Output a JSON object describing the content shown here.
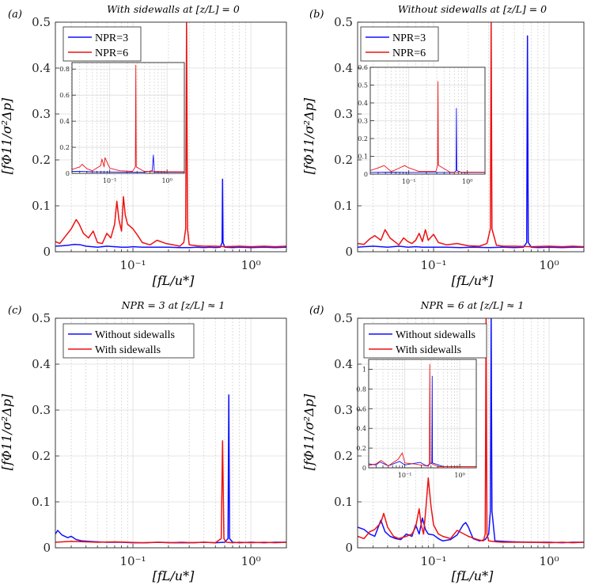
{
  "figure": {
    "background": "#ffffff",
    "colors": {
      "blue": "#1010ff",
      "red": "#ee1111"
    }
  },
  "chart_data": [
    {
      "type": "line",
      "panel_label": "(a)",
      "title": "With sidewalls at [z/L] = 0",
      "xlabel": "[fL/u*]",
      "ylabel": "[fΦ11/σ²Δp]",
      "xscale": "log",
      "xlim": [
        0.022,
        2.0
      ],
      "ylim": [
        0,
        0.5
      ],
      "yticks": [
        "0",
        "0.1",
        "0.2",
        "0.3",
        "0.4",
        "0.5"
      ],
      "xticks": [
        {
          "value": 0.1,
          "label": "10⁻¹"
        },
        {
          "value": 1,
          "label": "10⁰"
        }
      ],
      "legend": {
        "position": "top-left",
        "entries": [
          "NPR=3",
          "NPR=6"
        ]
      },
      "series": [
        {
          "name": "NPR=3",
          "color": "#1010ff",
          "x": [
            0.022,
            0.025,
            0.028,
            0.032,
            0.036,
            0.04,
            0.045,
            0.05,
            0.06,
            0.07,
            0.08,
            0.09,
            0.1,
            0.12,
            0.15,
            0.2,
            0.25,
            0.3,
            0.35,
            0.4,
            0.45,
            0.5,
            0.55,
            0.57,
            0.575,
            0.58,
            0.6,
            0.7,
            0.8,
            1.0,
            1.3,
            1.6,
            2.0
          ],
          "y": [
            0.012,
            0.013,
            0.014,
            0.016,
            0.015,
            0.012,
            0.011,
            0.01,
            0.012,
            0.011,
            0.01,
            0.01,
            0.011,
            0.01,
            0.01,
            0.01,
            0.009,
            0.009,
            0.01,
            0.009,
            0.01,
            0.009,
            0.01,
            0.02,
            0.158,
            0.02,
            0.01,
            0.009,
            0.01,
            0.009,
            0.01,
            0.009,
            0.01
          ]
        },
        {
          "name": "NPR=6",
          "color": "#ee1111",
          "x": [
            0.022,
            0.024,
            0.027,
            0.03,
            0.033,
            0.035,
            0.038,
            0.042,
            0.046,
            0.05,
            0.055,
            0.06,
            0.065,
            0.07,
            0.073,
            0.076,
            0.08,
            0.083,
            0.086,
            0.09,
            0.1,
            0.11,
            0.12,
            0.14,
            0.16,
            0.19,
            0.22,
            0.25,
            0.27,
            0.28,
            0.285,
            0.29,
            0.3,
            0.35,
            0.4,
            0.5,
            0.6,
            0.8,
            1.0,
            1.3,
            1.6,
            2.0
          ],
          "y": [
            0.022,
            0.018,
            0.035,
            0.05,
            0.07,
            0.06,
            0.04,
            0.03,
            0.045,
            0.02,
            0.018,
            0.04,
            0.03,
            0.06,
            0.11,
            0.07,
            0.045,
            0.12,
            0.08,
            0.06,
            0.05,
            0.035,
            0.02,
            0.015,
            0.025,
            0.018,
            0.015,
            0.012,
            0.02,
            0.05,
            0.5,
            0.05,
            0.015,
            0.013,
            0.012,
            0.012,
            0.011,
            0.012,
            0.011,
            0.012,
            0.011,
            0.012
          ]
        }
      ],
      "inset": {
        "ylim": [
          0,
          0.85
        ],
        "yticks": [
          "0",
          "0.2",
          "0.4",
          "0.6",
          "0.8"
        ],
        "xticks": [
          {
            "value": 0.1,
            "label": "10⁻¹"
          },
          {
            "value": 1,
            "label": "10⁰"
          }
        ],
        "series": [
          {
            "name": "NPR=3",
            "color": "#1010ff",
            "x": [
              0.022,
              0.03,
              0.05,
              0.1,
              0.2,
              0.4,
              0.55,
              0.575,
              0.6,
              1.0,
              2.0
            ],
            "y": [
              0.015,
              0.016,
              0.012,
              0.011,
              0.01,
              0.01,
              0.02,
              0.14,
              0.01,
              0.01,
              0.01
            ]
          },
          {
            "name": "NPR=6",
            "color": "#ee1111",
            "x": [
              0.022,
              0.03,
              0.033,
              0.04,
              0.05,
              0.07,
              0.073,
              0.08,
              0.083,
              0.1,
              0.15,
              0.25,
              0.28,
              0.285,
              0.29,
              0.4,
              1.0,
              2.0
            ],
            "y": [
              0.03,
              0.05,
              0.07,
              0.035,
              0.02,
              0.06,
              0.11,
              0.05,
              0.12,
              0.04,
              0.02,
              0.015,
              0.05,
              0.83,
              0.05,
              0.015,
              0.012,
              0.012
            ]
          }
        ]
      }
    },
    {
      "type": "line",
      "panel_label": "(b)",
      "title": "Without sidewalls at [z/L] = 0",
      "xlabel": "[fL/u*]",
      "ylabel": "[fΦ11/σ²Δp]",
      "xscale": "log",
      "xlim": [
        0.022,
        2.0
      ],
      "ylim": [
        0,
        0.5
      ],
      "yticks": [
        "0",
        "0.1",
        "0.2",
        "0.3",
        "0.4",
        "0.5"
      ],
      "xticks": [
        {
          "value": 0.1,
          "label": "10⁻¹"
        },
        {
          "value": 1,
          "label": "10⁰"
        }
      ],
      "legend": {
        "position": "top-left",
        "entries": [
          "NPR=3",
          "NPR=6"
        ]
      },
      "series": [
        {
          "name": "NPR=3",
          "color": "#1010ff",
          "x": [
            0.022,
            0.025,
            0.03,
            0.035,
            0.04,
            0.05,
            0.06,
            0.07,
            0.08,
            0.1,
            0.13,
            0.17,
            0.22,
            0.3,
            0.4,
            0.5,
            0.6,
            0.64,
            0.65,
            0.66,
            0.7,
            0.8,
            1.0,
            1.3,
            1.6,
            2.0
          ],
          "y": [
            0.01,
            0.011,
            0.012,
            0.011,
            0.01,
            0.012,
            0.01,
            0.011,
            0.01,
            0.01,
            0.01,
            0.009,
            0.01,
            0.009,
            0.01,
            0.009,
            0.01,
            0.02,
            0.47,
            0.02,
            0.01,
            0.009,
            0.01,
            0.009,
            0.01,
            0.01
          ]
        },
        {
          "name": "NPR=6",
          "color": "#ee1111",
          "x": [
            0.022,
            0.025,
            0.028,
            0.031,
            0.035,
            0.038,
            0.042,
            0.046,
            0.05,
            0.055,
            0.06,
            0.065,
            0.07,
            0.075,
            0.08,
            0.085,
            0.09,
            0.1,
            0.11,
            0.13,
            0.16,
            0.2,
            0.25,
            0.29,
            0.31,
            0.315,
            0.32,
            0.35,
            0.4,
            0.5,
            0.7,
            1.0,
            1.3,
            1.6,
            2.0
          ],
          "y": [
            0.018,
            0.016,
            0.028,
            0.035,
            0.025,
            0.048,
            0.03,
            0.022,
            0.015,
            0.03,
            0.022,
            0.018,
            0.025,
            0.04,
            0.022,
            0.048,
            0.025,
            0.038,
            0.02,
            0.015,
            0.018,
            0.013,
            0.012,
            0.018,
            0.05,
            0.5,
            0.05,
            0.014,
            0.012,
            0.012,
            0.011,
            0.012,
            0.011,
            0.012,
            0.011
          ]
        }
      ],
      "inset": {
        "ylim": [
          0,
          0.6
        ],
        "yticks": [
          "0",
          "0.1",
          "0.2",
          "0.3",
          "0.4",
          "0.5",
          "0.6"
        ],
        "xticks": [
          {
            "value": 0.1,
            "label": "10⁻¹"
          },
          {
            "value": 1,
            "label": "10⁰"
          }
        ],
        "series": [
          {
            "name": "NPR=3",
            "color": "#1010ff",
            "x": [
              0.022,
              0.05,
              0.1,
              0.3,
              0.6,
              0.64,
              0.65,
              0.66,
              0.8,
              2.0
            ],
            "y": [
              0.01,
              0.011,
              0.01,
              0.01,
              0.01,
              0.02,
              0.37,
              0.02,
              0.01,
              0.01
            ]
          },
          {
            "name": "NPR=6",
            "color": "#ee1111",
            "x": [
              0.022,
              0.03,
              0.038,
              0.05,
              0.06,
              0.075,
              0.085,
              0.1,
              0.15,
              0.29,
              0.31,
              0.315,
              0.32,
              0.5,
              2.0
            ],
            "y": [
              0.02,
              0.035,
              0.048,
              0.015,
              0.025,
              0.04,
              0.048,
              0.035,
              0.015,
              0.015,
              0.05,
              0.52,
              0.05,
              0.012,
              0.011
            ]
          }
        ]
      }
    },
    {
      "type": "line",
      "panel_label": "(c)",
      "title": "NPR = 3 at [z/L] ≈ 1",
      "xlabel": "[fL/u*]",
      "ylabel": "[fΦ11/σ²Δp]",
      "xscale": "log",
      "xlim": [
        0.022,
        2.0
      ],
      "ylim": [
        0,
        0.5
      ],
      "yticks": [
        "0",
        "0.1",
        "0.2",
        "0.3",
        "0.4",
        "0.5"
      ],
      "xticks": [
        {
          "value": 0.1,
          "label": "10⁻¹"
        },
        {
          "value": 1,
          "label": "10⁰"
        }
      ],
      "legend": {
        "position": "top-left",
        "entries": [
          "Without sidewalls",
          "With sidewalls"
        ]
      },
      "series": [
        {
          "name": "Without sidewalls",
          "color": "#1010ff",
          "x": [
            0.022,
            0.023,
            0.025,
            0.028,
            0.03,
            0.033,
            0.037,
            0.042,
            0.05,
            0.06,
            0.08,
            0.1,
            0.13,
            0.17,
            0.22,
            0.3,
            0.4,
            0.5,
            0.6,
            0.64,
            0.65,
            0.66,
            0.7,
            0.8,
            1.0,
            1.3,
            1.6,
            2.0
          ],
          "y": [
            0.03,
            0.038,
            0.028,
            0.022,
            0.025,
            0.018,
            0.015,
            0.014,
            0.013,
            0.012,
            0.012,
            0.011,
            0.011,
            0.012,
            0.011,
            0.011,
            0.012,
            0.011,
            0.012,
            0.02,
            0.333,
            0.02,
            0.012,
            0.011,
            0.012,
            0.011,
            0.012,
            0.012
          ]
        },
        {
          "name": "With sidewalls",
          "color": "#ee1111",
          "x": [
            0.022,
            0.025,
            0.03,
            0.04,
            0.05,
            0.07,
            0.09,
            0.12,
            0.16,
            0.2,
            0.26,
            0.33,
            0.4,
            0.5,
            0.56,
            0.575,
            0.59,
            0.62,
            0.7,
            0.8,
            1.0,
            1.3,
            1.6,
            2.0
          ],
          "y": [
            0.012,
            0.013,
            0.014,
            0.013,
            0.012,
            0.013,
            0.012,
            0.011,
            0.012,
            0.011,
            0.012,
            0.011,
            0.012,
            0.011,
            0.02,
            0.233,
            0.02,
            0.012,
            0.011,
            0.012,
            0.011,
            0.012,
            0.011,
            0.012
          ]
        }
      ]
    },
    {
      "type": "line",
      "panel_label": "(d)",
      "title": "NPR = 6 at [z/L] ≈ 1",
      "xlabel": "[fL/u*]",
      "ylabel": "[fΦ11/σ²Δp]",
      "xscale": "log",
      "xlim": [
        0.022,
        2.0
      ],
      "ylim": [
        0,
        0.5
      ],
      "yticks": [
        "0",
        "0.1",
        "0.2",
        "0.3",
        "0.4",
        "0.5"
      ],
      "xticks": [
        {
          "value": 0.1,
          "label": "10⁻¹"
        },
        {
          "value": 1,
          "label": "10⁰"
        }
      ],
      "legend": {
        "position": "top-left",
        "entries": [
          "Without sidewalls",
          "With sidewalls"
        ]
      },
      "series": [
        {
          "name": "Without sidewalls",
          "color": "#1010ff",
          "x": [
            0.022,
            0.025,
            0.028,
            0.031,
            0.035,
            0.038,
            0.042,
            0.047,
            0.052,
            0.058,
            0.065,
            0.07,
            0.075,
            0.08,
            0.085,
            0.09,
            0.1,
            0.11,
            0.12,
            0.14,
            0.16,
            0.18,
            0.19,
            0.2,
            0.22,
            0.25,
            0.28,
            0.3,
            0.31,
            0.315,
            0.32,
            0.34,
            0.4,
            0.5,
            0.7,
            1.0,
            1.3,
            1.6,
            2.0
          ],
          "y": [
            0.045,
            0.04,
            0.03,
            0.025,
            0.06,
            0.035,
            0.025,
            0.02,
            0.018,
            0.03,
            0.025,
            0.05,
            0.03,
            0.065,
            0.04,
            0.03,
            0.028,
            0.02,
            0.015,
            0.018,
            0.028,
            0.05,
            0.055,
            0.045,
            0.02,
            0.015,
            0.018,
            0.03,
            0.08,
            0.5,
            0.08,
            0.015,
            0.014,
            0.013,
            0.012,
            0.012,
            0.011,
            0.012,
            0.012
          ]
        },
        {
          "name": "With sidewalls",
          "color": "#ee1111",
          "x": [
            0.022,
            0.025,
            0.028,
            0.031,
            0.035,
            0.037,
            0.04,
            0.045,
            0.05,
            0.058,
            0.065,
            0.07,
            0.075,
            0.078,
            0.082,
            0.086,
            0.09,
            0.095,
            0.1,
            0.11,
            0.12,
            0.14,
            0.16,
            0.2,
            0.24,
            0.27,
            0.28,
            0.285,
            0.29,
            0.3,
            0.35,
            0.4,
            0.5,
            0.7,
            1.0,
            1.3,
            1.6,
            2.0
          ],
          "y": [
            0.025,
            0.02,
            0.035,
            0.04,
            0.055,
            0.075,
            0.045,
            0.025,
            0.02,
            0.025,
            0.03,
            0.045,
            0.085,
            0.05,
            0.03,
            0.09,
            0.152,
            0.09,
            0.05,
            0.03,
            0.025,
            0.02,
            0.038,
            0.025,
            0.018,
            0.015,
            0.03,
            0.5,
            0.03,
            0.015,
            0.013,
            0.012,
            0.012,
            0.012,
            0.011,
            0.012,
            0.011,
            0.012
          ]
        }
      ],
      "inset": {
        "ylim": [
          0,
          1.1
        ],
        "yticks": [
          "0",
          "0.2",
          "0.4",
          "0.6",
          "0.8",
          "1"
        ],
        "xticks": [
          {
            "value": 0.1,
            "label": "10⁻¹"
          },
          {
            "value": 1,
            "label": "10⁰"
          }
        ],
        "series": [
          {
            "name": "Without sidewalls",
            "color": "#1010ff",
            "x": [
              0.022,
              0.03,
              0.035,
              0.05,
              0.08,
              0.1,
              0.19,
              0.25,
              0.31,
              0.315,
              0.32,
              0.5,
              2.0
            ],
            "y": [
              0.04,
              0.03,
              0.06,
              0.02,
              0.065,
              0.03,
              0.055,
              0.02,
              0.05,
              0.93,
              0.05,
              0.013,
              0.012
            ]
          },
          {
            "name": "With sidewalls",
            "color": "#ee1111",
            "x": [
              0.022,
              0.03,
              0.037,
              0.05,
              0.075,
              0.09,
              0.1,
              0.16,
              0.27,
              0.28,
              0.285,
              0.29,
              0.4,
              2.0
            ],
            "y": [
              0.025,
              0.04,
              0.075,
              0.02,
              0.085,
              0.152,
              0.05,
              0.038,
              0.015,
              0.05,
              1.05,
              0.05,
              0.012,
              0.012
            ]
          }
        ]
      }
    }
  ]
}
